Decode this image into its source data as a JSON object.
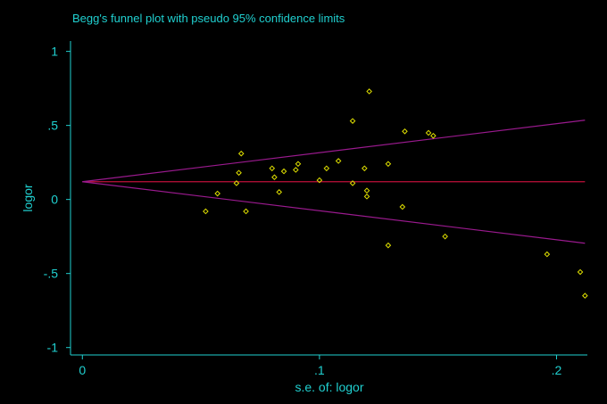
{
  "chart_data": {
    "type": "scatter",
    "title": "Begg's funnel plot with pseudo 95% confidence limits",
    "xlabel": "s.e. of: logor",
    "ylabel": "logor",
    "xlim": [
      -0.005,
      0.213
    ],
    "ylim": [
      -1.05,
      1.07
    ],
    "x_ticks": [
      {
        "value": 0,
        "label": "0"
      },
      {
        "value": 0.1,
        "label": ".1"
      },
      {
        "value": 0.2,
        "label": ".2"
      }
    ],
    "y_ticks": [
      {
        "value": 1,
        "label": "1"
      },
      {
        "value": 0.5,
        "label": ".5"
      },
      {
        "value": 0,
        "label": "0"
      },
      {
        "value": -0.5,
        "label": "-.5"
      },
      {
        "value": -1,
        "label": "-1"
      }
    ],
    "pooled_estimate": 0.12,
    "x_max": 0.212,
    "ci_multiplier": 1.96,
    "points": [
      {
        "x": 0.052,
        "y": -0.08
      },
      {
        "x": 0.057,
        "y": 0.04
      },
      {
        "x": 0.065,
        "y": 0.11
      },
      {
        "x": 0.066,
        "y": 0.18
      },
      {
        "x": 0.067,
        "y": 0.31
      },
      {
        "x": 0.069,
        "y": -0.08
      },
      {
        "x": 0.08,
        "y": 0.21
      },
      {
        "x": 0.081,
        "y": 0.15
      },
      {
        "x": 0.083,
        "y": 0.05
      },
      {
        "x": 0.085,
        "y": 0.19
      },
      {
        "x": 0.09,
        "y": 0.2
      },
      {
        "x": 0.091,
        "y": 0.24
      },
      {
        "x": 0.1,
        "y": 0.13
      },
      {
        "x": 0.103,
        "y": 0.21
      },
      {
        "x": 0.108,
        "y": 0.26
      },
      {
        "x": 0.114,
        "y": 0.53
      },
      {
        "x": 0.114,
        "y": 0.11
      },
      {
        "x": 0.119,
        "y": 0.21
      },
      {
        "x": 0.12,
        "y": 0.02
      },
      {
        "x": 0.12,
        "y": 0.06
      },
      {
        "x": 0.121,
        "y": 0.73
      },
      {
        "x": 0.129,
        "y": 0.24
      },
      {
        "x": 0.129,
        "y": -0.31
      },
      {
        "x": 0.135,
        "y": -0.05
      },
      {
        "x": 0.136,
        "y": 0.46
      },
      {
        "x": 0.146,
        "y": 0.45
      },
      {
        "x": 0.148,
        "y": 0.43
      },
      {
        "x": 0.153,
        "y": -0.25
      },
      {
        "x": 0.196,
        "y": -0.37
      },
      {
        "x": 0.21,
        "y": -0.49
      },
      {
        "x": 0.212,
        "y": -0.65
      }
    ],
    "grid": false,
    "legend": "none"
  },
  "colors": {
    "background": "#000000",
    "text": "#20d0d0",
    "axis": "#20d0d0",
    "points": "#e0e000",
    "pooled_line": "#c0103a",
    "ci_lines": "#9a1a8e"
  }
}
